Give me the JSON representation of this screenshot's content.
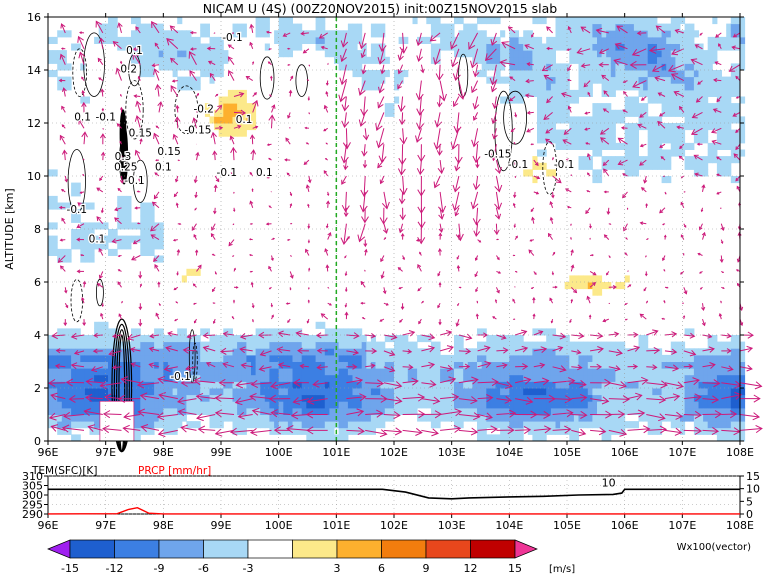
{
  "chart_data": [
    {
      "type": "heatmap",
      "title": "NICAM U (4S) (00Z20NOV2015) init:00Z15NOV2015 slab",
      "xlabel": "",
      "ylabel": "ALTITUDE [km]",
      "x_ticks": [
        "96E",
        "97E",
        "98E",
        "99E",
        "100E",
        "101E",
        "102E",
        "103E",
        "104E",
        "105E",
        "106E",
        "107E",
        "108E"
      ],
      "y_ticks": [
        "0",
        "2",
        "4",
        "6",
        "8",
        "10",
        "12",
        "14",
        "16"
      ],
      "xlim": [
        96,
        108
      ],
      "ylim": [
        0,
        16
      ],
      "grid": true,
      "marker_longitude": 101,
      "contour_labels": [
        {
          "text": "-0.1",
          "lon": 96.5,
          "alt": 8.6
        },
        {
          "text": "0.1",
          "lon": 96.6,
          "alt": 12.1
        },
        {
          "text": "-0.1",
          "lon": 97.0,
          "alt": 12.1
        },
        {
          "text": "0.1",
          "lon": 97.5,
          "alt": 14.6
        },
        {
          "text": "0.2",
          "lon": 97.4,
          "alt": 13.9
        },
        {
          "text": "0.15",
          "lon": 97.6,
          "alt": 11.5
        },
        {
          "text": "0.3",
          "lon": 97.3,
          "alt": 10.6
        },
        {
          "text": "0.25",
          "lon": 97.35,
          "alt": 10.2
        },
        {
          "text": "0.15",
          "lon": 98.1,
          "alt": 10.8
        },
        {
          "text": "0.1",
          "lon": 98.0,
          "alt": 10.2
        },
        {
          "text": "-0.1",
          "lon": 97.5,
          "alt": 9.7
        },
        {
          "text": "0.1",
          "lon": 96.85,
          "alt": 7.5
        },
        {
          "text": "-0.1",
          "lon": 99.2,
          "alt": 15.1
        },
        {
          "text": "-0.2",
          "lon": 98.7,
          "alt": 12.4
        },
        {
          "text": "-0.15",
          "lon": 98.6,
          "alt": 11.6
        },
        {
          "text": "0.1",
          "lon": 99.4,
          "alt": 12.0
        },
        {
          "text": "-0.1",
          "lon": 99.1,
          "alt": 10.0
        },
        {
          "text": "0.1",
          "lon": 99.75,
          "alt": 10.0
        },
        {
          "text": "-0.15",
          "lon": 103.8,
          "alt": 10.7
        },
        {
          "text": "-0.1",
          "lon": 104.15,
          "alt": 10.3
        },
        {
          "text": "-0.1",
          "lon": 104.95,
          "alt": 10.3
        },
        {
          "text": "-0.1",
          "lon": 98.3,
          "alt": 2.3
        }
      ]
    },
    {
      "type": "line",
      "series": [
        {
          "name": "TEM(SFC)[K]",
          "color": "#000000",
          "x": [
            96,
            100,
            101.8,
            102.2,
            102.6,
            103.0,
            103.3,
            104.0,
            104.6,
            105.2,
            105.8,
            105.95,
            106.0,
            108
          ],
          "values": [
            303,
            303,
            303,
            301.5,
            298.5,
            298,
            298.5,
            299,
            299.3,
            300,
            300.3,
            301,
            303,
            303
          ]
        },
        {
          "name": "PRCP [mm/hr]",
          "color": "#ff0000",
          "x": [
            96,
            97.2,
            97.4,
            97.55,
            97.75,
            98.0,
            108
          ],
          "values": [
            0.05,
            0.1,
            1.8,
            2.5,
            0.3,
            0.05,
            0.05
          ]
        }
      ],
      "left_axis_label": "TEM(SFC)[K]",
      "right_axis_label": "PRCP [mm/hr]",
      "left_ticks": [
        "310",
        "305",
        "300",
        "295",
        "290"
      ],
      "left_range": [
        290,
        310
      ],
      "right_ticks": [
        "15",
        "10",
        "5",
        "0"
      ],
      "right_range": [
        0,
        15
      ],
      "annotation": "10",
      "x_ticks": [
        "96E",
        "97E",
        "98E",
        "99E",
        "100E",
        "101E",
        "102E",
        "103E",
        "104E",
        "105E",
        "106E",
        "107E",
        "108E"
      ],
      "xlim": [
        96,
        108
      ]
    }
  ],
  "colorbar": {
    "labels": [
      "-15",
      "-12",
      "-9",
      "-6",
      "-3",
      "3",
      "6",
      "9",
      "12",
      "15"
    ],
    "unit": "[m/s]",
    "colors": [
      "#a020f0",
      "#1e5fcf",
      "#3c7fe3",
      "#6fa5ec",
      "#a8d8f5",
      "#ffffff",
      "#fce98a",
      "#fdb02e",
      "#f27d0e",
      "#e8471c",
      "#c00000",
      "#ee3596"
    ]
  },
  "vector_label": "Wx100(vector)",
  "styles": {
    "vector_color": "#cc1a7a",
    "marker_color": "#22aa22",
    "contour_color": "#000000"
  }
}
